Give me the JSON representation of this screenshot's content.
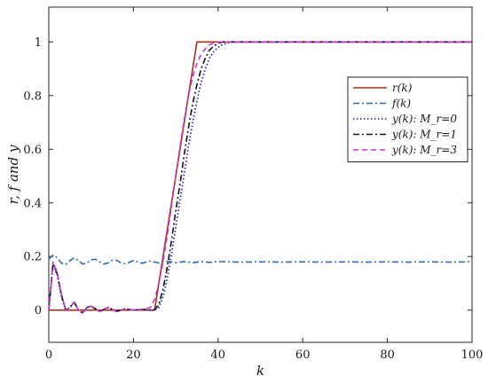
{
  "chart_data": {
    "type": "line",
    "xlabel": "k",
    "ylabel": "r, f and y",
    "xlim": [
      0,
      100
    ],
    "ylim": [
      -0.12,
      1.13
    ],
    "xticks": [
      "0",
      "20",
      "40",
      "60",
      "80",
      "100"
    ],
    "yticks": [
      "0",
      "0.2",
      "0.4",
      "0.6",
      "0.8",
      "1"
    ],
    "legend_position": "right-middle",
    "series": [
      {
        "name": "r(k)",
        "color": "#a0301a",
        "dash": "solid",
        "x": [
          0,
          25,
          35,
          100
        ],
        "y": [
          0,
          0,
          1,
          1
        ]
      },
      {
        "name": "f(k)",
        "color": "#2e6aa8",
        "dash": "dashdot",
        "x": [
          0,
          1,
          2,
          3,
          4,
          5,
          6,
          7,
          8,
          9,
          10,
          11,
          12,
          13,
          14,
          15,
          16,
          17,
          18,
          19,
          20,
          22,
          24,
          26,
          28,
          30,
          32,
          34,
          36,
          38,
          40,
          45,
          50,
          55,
          60,
          65,
          70,
          75,
          80,
          85,
          90,
          95,
          100
        ],
        "y": [
          0.19,
          0.205,
          0.195,
          0.175,
          0.17,
          0.185,
          0.195,
          0.185,
          0.172,
          0.175,
          0.188,
          0.19,
          0.18,
          0.172,
          0.176,
          0.186,
          0.186,
          0.177,
          0.173,
          0.178,
          0.185,
          0.175,
          0.183,
          0.176,
          0.182,
          0.177,
          0.181,
          0.177,
          0.181,
          0.178,
          0.181,
          0.179,
          0.18,
          0.179,
          0.18,
          0.179,
          0.18,
          0.179,
          0.18,
          0.179,
          0.18,
          0.179,
          0.18
        ]
      },
      {
        "name": "y(k): M_r=0",
        "color": "#2222cc",
        "dash": "dotted",
        "x": [
          0,
          1,
          2,
          3,
          4,
          5,
          6,
          7,
          8,
          9,
          10,
          12,
          14,
          16,
          18,
          20,
          22,
          24,
          25,
          26,
          27,
          28,
          29,
          30,
          31,
          32,
          33,
          34,
          35,
          36,
          37,
          38,
          39,
          40,
          41,
          42,
          43,
          44,
          46,
          48,
          50,
          55,
          60,
          65,
          70,
          75,
          80,
          85,
          90,
          95,
          100
        ],
        "y": [
          0,
          0.17,
          0.13,
          0.05,
          0.0,
          0.01,
          0.03,
          0.0,
          -0.01,
          0.01,
          0.015,
          -0.005,
          0.01,
          -0.005,
          0.005,
          0.0,
          0.003,
          0.0,
          0.0,
          0.01,
          0.05,
          0.12,
          0.21,
          0.31,
          0.41,
          0.51,
          0.61,
          0.7,
          0.78,
          0.85,
          0.9,
          0.94,
          0.965,
          0.98,
          0.99,
          0.995,
          1.0,
          1.0,
          1.0,
          1.0,
          1.0,
          1.0,
          1.0,
          1.0,
          1.0,
          1.0,
          1.0,
          1.0,
          1.0,
          1.0,
          1.0
        ]
      },
      {
        "name": "y(k): M_r=1",
        "color": "#111111",
        "dash": "dashdot",
        "x": [
          0,
          1,
          2,
          3,
          4,
          5,
          6,
          7,
          8,
          9,
          10,
          12,
          14,
          16,
          18,
          20,
          22,
          24,
          25,
          26,
          27,
          28,
          29,
          30,
          31,
          32,
          33,
          34,
          35,
          36,
          37,
          38,
          39,
          40,
          41,
          42,
          43,
          44,
          46,
          48,
          50,
          55,
          60,
          65,
          70,
          75,
          80,
          85,
          90,
          95,
          100
        ],
        "y": [
          0,
          0.175,
          0.135,
          0.055,
          0.0,
          0.01,
          0.03,
          0.0,
          -0.01,
          0.01,
          0.015,
          -0.005,
          0.01,
          -0.005,
          0.005,
          0.0,
          0.003,
          0.0,
          0.002,
          0.02,
          0.08,
          0.16,
          0.26,
          0.37,
          0.47,
          0.58,
          0.68,
          0.77,
          0.84,
          0.9,
          0.94,
          0.97,
          0.985,
          0.995,
          1.0,
          1.0,
          1.0,
          1.0,
          1.0,
          1.0,
          1.0,
          1.0,
          1.0,
          1.0,
          1.0,
          1.0,
          1.0,
          1.0,
          1.0,
          1.0,
          1.0
        ]
      },
      {
        "name": "y(k): M_r=3",
        "color": "#cc33cc",
        "dash": "dashed",
        "x": [
          0,
          1,
          2,
          3,
          4,
          5,
          6,
          7,
          8,
          9,
          10,
          12,
          14,
          16,
          18,
          20,
          22,
          24,
          25,
          26,
          27,
          28,
          29,
          30,
          31,
          32,
          33,
          34,
          35,
          36,
          37,
          38,
          39,
          40,
          41,
          42,
          43,
          44,
          46,
          48,
          50,
          55,
          60,
          65,
          70,
          75,
          80,
          85,
          90,
          95,
          100
        ],
        "y": [
          0,
          0.18,
          0.14,
          0.06,
          0.0,
          0.01,
          0.03,
          0.0,
          -0.01,
          0.01,
          0.015,
          -0.005,
          0.01,
          -0.005,
          0.005,
          0.0,
          0.003,
          0.01,
          0.04,
          0.1,
          0.18,
          0.28,
          0.39,
          0.5,
          0.61,
          0.71,
          0.8,
          0.87,
          0.92,
          0.955,
          0.975,
          0.99,
          0.995,
          1.0,
          1.0,
          1.0,
          1.0,
          1.0,
          1.0,
          1.0,
          1.0,
          1.0,
          1.0,
          1.0,
          1.0,
          1.0,
          1.0,
          1.0,
          1.0,
          1.0,
          1.0
        ]
      }
    ]
  }
}
